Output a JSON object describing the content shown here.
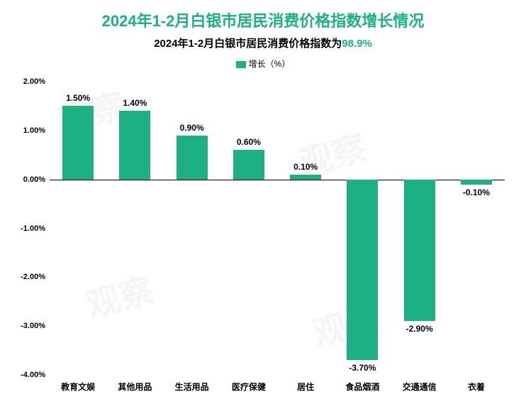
{
  "title": {
    "text": "2024年1-2月白银市居民消费价格指数增长情况",
    "fontsize": 22,
    "color": "#1cb083"
  },
  "subtitle": {
    "prefix": "2024年1-2月白银市居民消费价格指数为",
    "value": "98.9%",
    "fontsize": 15,
    "prefix_color": "#000000",
    "value_color": "#1cb083"
  },
  "legend": {
    "label": "增长（%）",
    "swatch_color": "#1cb083"
  },
  "chart": {
    "type": "bar",
    "categories": [
      "教育文娱",
      "其他用品",
      "生活用品",
      "医疗保健",
      "居住",
      "食品烟酒",
      "交通通信",
      "衣着"
    ],
    "values": [
      1.5,
      1.4,
      0.9,
      0.6,
      0.1,
      -3.7,
      -2.9,
      -0.1
    ],
    "value_labels": [
      "1.50%",
      "1.40%",
      "0.90%",
      "0.60%",
      "0.10%",
      "-3.70%",
      "-2.90%",
      "-0.10%"
    ],
    "bar_color": "#1cb083",
    "ylim": [
      -4.0,
      2.0
    ],
    "ytick_step": 1.0,
    "ytick_labels": [
      "2.00%",
      "1.00%",
      "0.00%",
      "-1.00%",
      "-2.00%",
      "-3.00%",
      "-4.00%"
    ],
    "ytick_values": [
      2.0,
      1.0,
      0.0,
      -1.0,
      -2.0,
      -3.0,
      -4.0
    ],
    "zero_line_color": "#000000",
    "background_color": "#ffffff",
    "bar_width_ratio": 0.55,
    "label_fontsize": 12
  }
}
